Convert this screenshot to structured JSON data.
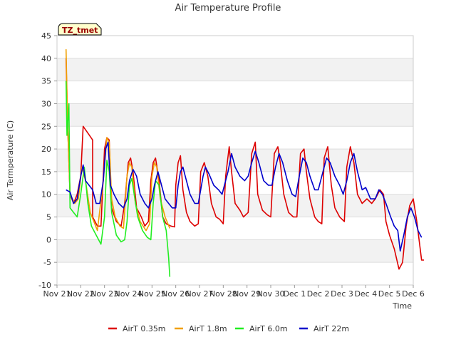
{
  "chart_data": {
    "type": "line",
    "title": "Air Temperature Profile",
    "xlabel": "Time",
    "ylabel": "Air Termperature (C)",
    "badge": "TZ_tmet",
    "ylim": [
      -10,
      45
    ],
    "xlim": [
      0,
      15
    ],
    "yticks": [
      -10,
      -5,
      0,
      5,
      10,
      15,
      20,
      25,
      30,
      35,
      40,
      45
    ],
    "xticks": [
      {
        "x": 0,
        "label": "Nov 21"
      },
      {
        "x": 1,
        "label": "Nov 22"
      },
      {
        "x": 2,
        "label": "Nov 23"
      },
      {
        "x": 3,
        "label": "Nov 24"
      },
      {
        "x": 4,
        "label": "Nov 25"
      },
      {
        "x": 5,
        "label": "Nov 26"
      },
      {
        "x": 6,
        "label": "Nov 27"
      },
      {
        "x": 7,
        "label": "Nov 28"
      },
      {
        "x": 8,
        "label": "Nov 29"
      },
      {
        "x": 9,
        "label": "Nov 30"
      },
      {
        "x": 10,
        "label": "Dec 1"
      },
      {
        "x": 11,
        "label": "Dec 2"
      },
      {
        "x": 12,
        "label": "Dec 3"
      },
      {
        "x": 13,
        "label": "Dec 4"
      },
      {
        "x": 14,
        "label": "Dec 5"
      },
      {
        "x": 15,
        "label": "Dec 6"
      }
    ],
    "grid": true,
    "legend_position": "bottom",
    "series": [
      {
        "name": "AirT 0.35m",
        "color": "#dd0000",
        "points": [
          [
            0.38,
            40
          ],
          [
            0.45,
            25
          ],
          [
            0.55,
            10
          ],
          [
            0.7,
            8
          ],
          [
            0.85,
            10
          ],
          [
            1.0,
            14
          ],
          [
            1.1,
            25
          ],
          [
            1.5,
            22
          ],
          [
            1.5,
            5
          ],
          [
            1.7,
            3
          ],
          [
            1.85,
            3
          ],
          [
            2.0,
            20
          ],
          [
            2.1,
            22.5
          ],
          [
            2.2,
            22
          ],
          [
            2.3,
            7
          ],
          [
            2.5,
            4
          ],
          [
            2.7,
            3
          ],
          [
            2.85,
            8
          ],
          [
            3.0,
            17
          ],
          [
            3.1,
            18
          ],
          [
            3.2,
            15
          ],
          [
            3.35,
            7
          ],
          [
            3.55,
            5
          ],
          [
            3.7,
            3
          ],
          [
            3.85,
            4
          ],
          [
            3.95,
            13
          ],
          [
            4.05,
            17
          ],
          [
            4.15,
            18
          ],
          [
            4.3,
            13
          ],
          [
            4.45,
            5
          ],
          [
            4.6,
            3.5
          ],
          [
            4.8,
            3
          ],
          [
            4.95,
            2.8
          ],
          [
            5.0,
            12
          ],
          [
            5.1,
            17
          ],
          [
            5.2,
            18.5
          ],
          [
            5.3,
            11
          ],
          [
            5.45,
            6
          ],
          [
            5.6,
            4
          ],
          [
            5.8,
            3
          ],
          [
            5.95,
            3.5
          ],
          [
            6.05,
            15
          ],
          [
            6.2,
            17
          ],
          [
            6.35,
            14
          ],
          [
            6.5,
            8
          ],
          [
            6.7,
            5
          ],
          [
            6.85,
            4.5
          ],
          [
            7.0,
            3.5
          ],
          [
            7.1,
            14
          ],
          [
            7.25,
            20.5
          ],
          [
            7.35,
            15
          ],
          [
            7.5,
            8
          ],
          [
            7.7,
            6.5
          ],
          [
            7.85,
            5
          ],
          [
            8.05,
            6
          ],
          [
            8.2,
            19
          ],
          [
            8.35,
            21.5
          ],
          [
            8.45,
            10
          ],
          [
            8.65,
            6.5
          ],
          [
            8.85,
            5.5
          ],
          [
            9.0,
            5
          ],
          [
            9.15,
            19
          ],
          [
            9.3,
            20.5
          ],
          [
            9.4,
            17
          ],
          [
            9.55,
            10
          ],
          [
            9.75,
            6
          ],
          [
            9.95,
            5
          ],
          [
            10.1,
            5
          ],
          [
            10.25,
            19
          ],
          [
            10.4,
            20
          ],
          [
            10.5,
            15
          ],
          [
            10.65,
            9
          ],
          [
            10.85,
            5
          ],
          [
            11.0,
            4
          ],
          [
            11.15,
            3.5
          ],
          [
            11.25,
            18
          ],
          [
            11.4,
            20.5
          ],
          [
            11.55,
            12
          ],
          [
            11.7,
            7
          ],
          [
            11.9,
            5
          ],
          [
            12.1,
            4
          ],
          [
            12.2,
            16
          ],
          [
            12.35,
            20.5
          ],
          [
            12.5,
            17
          ],
          [
            12.65,
            10
          ],
          [
            12.85,
            8
          ],
          [
            13.05,
            9
          ],
          [
            13.25,
            8
          ],
          [
            13.4,
            9
          ],
          [
            13.6,
            11
          ],
          [
            13.75,
            10
          ],
          [
            13.85,
            4
          ],
          [
            14.0,
            1
          ],
          [
            14.2,
            -2
          ],
          [
            14.4,
            -6.5
          ],
          [
            14.55,
            -5
          ],
          [
            14.7,
            3
          ],
          [
            14.85,
            7.5
          ],
          [
            15.0,
            9
          ],
          [
            15.15,
            4
          ],
          [
            15.35,
            -4.5
          ],
          [
            15.45,
            -4.5
          ]
        ]
      },
      {
        "name": "AirT 1.8m",
        "color": "#f0a000",
        "points": [
          [
            0.38,
            42
          ],
          [
            0.45,
            25
          ],
          [
            0.55,
            10
          ],
          [
            0.75,
            8
          ],
          [
            0.9,
            9
          ],
          [
            1.05,
            16
          ],
          [
            1.2,
            13
          ],
          [
            1.4,
            6
          ],
          [
            1.7,
            2
          ],
          [
            1.95,
            13
          ],
          [
            2.1,
            22.5
          ],
          [
            2.2,
            21.5
          ],
          [
            2.3,
            9
          ],
          [
            2.45,
            5
          ],
          [
            2.65,
            3
          ],
          [
            2.8,
            2.5
          ],
          [
            2.95,
            14
          ],
          [
            3.05,
            17
          ],
          [
            3.15,
            16
          ],
          [
            3.3,
            8
          ],
          [
            3.5,
            4
          ],
          [
            3.75,
            2
          ],
          [
            3.9,
            3.5
          ],
          [
            4.0,
            14
          ],
          [
            4.1,
            17
          ],
          [
            4.2,
            16
          ],
          [
            4.35,
            9
          ],
          [
            4.55,
            5
          ],
          [
            4.75,
            2.5
          ]
        ]
      },
      {
        "name": "AirT 6.0m",
        "color": "#22ee22",
        "points": [
          [
            0.38,
            35
          ],
          [
            0.42,
            23
          ],
          [
            0.5,
            30
          ],
          [
            0.55,
            7
          ],
          [
            0.7,
            6
          ],
          [
            0.85,
            5
          ],
          [
            1.0,
            10
          ],
          [
            1.15,
            16
          ],
          [
            1.3,
            8
          ],
          [
            1.45,
            3
          ],
          [
            1.65,
            1
          ],
          [
            1.85,
            -1
          ],
          [
            2.0,
            5
          ],
          [
            2.1,
            17.5
          ],
          [
            2.2,
            15
          ],
          [
            2.3,
            6
          ],
          [
            2.5,
            1
          ],
          [
            2.7,
            -0.5
          ],
          [
            2.85,
            0
          ],
          [
            2.95,
            4
          ],
          [
            3.05,
            12
          ],
          [
            3.15,
            13.5
          ],
          [
            3.25,
            10
          ],
          [
            3.4,
            5
          ],
          [
            3.6,
            2
          ],
          [
            3.8,
            0.5
          ],
          [
            3.95,
            0
          ],
          [
            4.05,
            8
          ],
          [
            4.15,
            13
          ],
          [
            4.3,
            12
          ],
          [
            4.45,
            5
          ],
          [
            4.6,
            2
          ],
          [
            4.7,
            -4
          ],
          [
            4.75,
            -8.2
          ]
        ]
      },
      {
        "name": "AirT 22m",
        "color": "#0000cc",
        "points": [
          [
            0.38,
            11
          ],
          [
            0.55,
            10.5
          ],
          [
            0.7,
            8
          ],
          [
            0.85,
            9
          ],
          [
            1.0,
            14
          ],
          [
            1.1,
            16.5
          ],
          [
            1.2,
            13
          ],
          [
            1.35,
            12
          ],
          [
            1.5,
            11
          ],
          [
            1.65,
            8
          ],
          [
            1.8,
            8
          ],
          [
            1.95,
            13
          ],
          [
            2.05,
            20
          ],
          [
            2.15,
            21.5
          ],
          [
            2.25,
            12
          ],
          [
            2.4,
            10
          ],
          [
            2.6,
            8
          ],
          [
            2.8,
            7
          ],
          [
            2.95,
            9
          ],
          [
            3.05,
            13
          ],
          [
            3.2,
            15.5
          ],
          [
            3.35,
            14
          ],
          [
            3.5,
            10
          ],
          [
            3.7,
            8
          ],
          [
            3.85,
            7
          ],
          [
            4.0,
            9
          ],
          [
            4.1,
            12
          ],
          [
            4.25,
            15
          ],
          [
            4.4,
            12
          ],
          [
            4.55,
            9
          ],
          [
            4.7,
            8
          ],
          [
            4.85,
            7
          ],
          [
            5.0,
            7
          ],
          [
            5.1,
            12
          ],
          [
            5.2,
            15
          ],
          [
            5.3,
            16
          ],
          [
            5.4,
            14
          ],
          [
            5.6,
            10
          ],
          [
            5.8,
            8
          ],
          [
            5.95,
            8
          ],
          [
            6.05,
            11
          ],
          [
            6.15,
            14
          ],
          [
            6.25,
            16
          ],
          [
            6.4,
            14.5
          ],
          [
            6.6,
            12
          ],
          [
            6.8,
            11
          ],
          [
            6.95,
            10
          ],
          [
            7.05,
            12
          ],
          [
            7.2,
            15
          ],
          [
            7.35,
            19
          ],
          [
            7.5,
            16
          ],
          [
            7.7,
            14
          ],
          [
            7.9,
            13
          ],
          [
            8.05,
            14
          ],
          [
            8.2,
            17
          ],
          [
            8.35,
            19.5
          ],
          [
            8.5,
            17
          ],
          [
            8.7,
            13
          ],
          [
            8.9,
            12
          ],
          [
            9.05,
            12
          ],
          [
            9.2,
            16
          ],
          [
            9.35,
            19
          ],
          [
            9.5,
            17
          ],
          [
            9.7,
            13
          ],
          [
            9.9,
            10
          ],
          [
            10.05,
            9.5
          ],
          [
            10.2,
            14
          ],
          [
            10.35,
            18
          ],
          [
            10.5,
            17
          ],
          [
            10.65,
            14
          ],
          [
            10.85,
            11
          ],
          [
            11.0,
            11
          ],
          [
            11.2,
            15
          ],
          [
            11.35,
            18
          ],
          [
            11.5,
            17
          ],
          [
            11.7,
            14
          ],
          [
            11.9,
            12
          ],
          [
            12.05,
            10
          ],
          [
            12.2,
            13
          ],
          [
            12.35,
            17
          ],
          [
            12.5,
            19
          ],
          [
            12.65,
            15
          ],
          [
            12.85,
            11
          ],
          [
            13.0,
            11.5
          ],
          [
            13.2,
            9
          ],
          [
            13.4,
            9
          ],
          [
            13.55,
            11
          ],
          [
            13.7,
            10
          ],
          [
            13.85,
            8
          ],
          [
            14.05,
            5
          ],
          [
            14.2,
            3
          ],
          [
            14.35,
            2
          ],
          [
            14.45,
            -2.5
          ],
          [
            14.6,
            1
          ],
          [
            14.75,
            5
          ],
          [
            14.9,
            7
          ],
          [
            15.05,
            5
          ],
          [
            15.2,
            2
          ],
          [
            15.35,
            0.5
          ]
        ]
      }
    ]
  }
}
